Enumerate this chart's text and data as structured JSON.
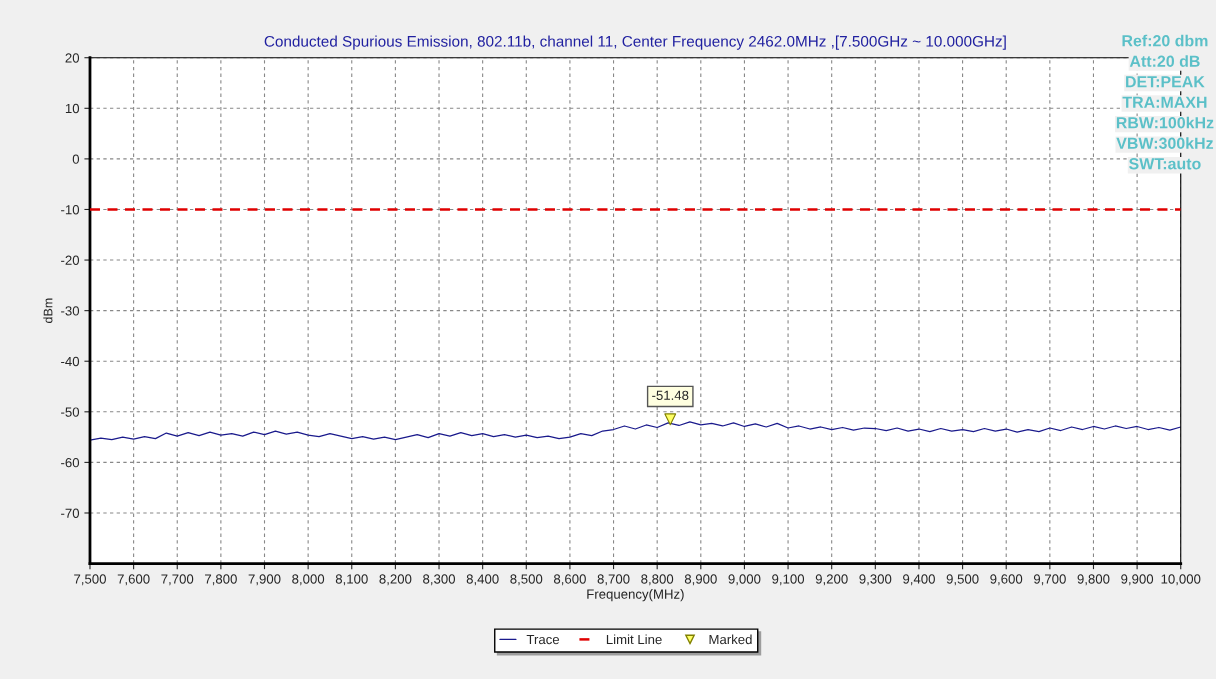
{
  "chart_data": {
    "type": "line",
    "title": "Conducted Spurious Emission, 802.11b, channel 11, Center Frequency 2462.0MHz ,[7.500GHz ~ 10.000GHz]",
    "xlabel": "Frequency(MHz)",
    "ylabel": "dBm",
    "annotations": [
      "Ref:20 dbm",
      "Att:20 dB",
      "DET:PEAK",
      "TRA:MAXH",
      "RBW:100kHz",
      "VBW:300kHz",
      "SWT:auto"
    ],
    "series": [
      {
        "name": "Trace",
        "color": "#1a1a8c",
        "x": [
          7500,
          7525,
          7550,
          7575,
          7600,
          7625,
          7650,
          7675,
          7700,
          7725,
          7750,
          7775,
          7800,
          7825,
          7850,
          7875,
          7900,
          7925,
          7950,
          7975,
          8000,
          8025,
          8050,
          8075,
          8100,
          8125,
          8150,
          8175,
          8200,
          8225,
          8250,
          8275,
          8300,
          8325,
          8350,
          8375,
          8400,
          8425,
          8450,
          8475,
          8500,
          8525,
          8550,
          8575,
          8600,
          8625,
          8650,
          8675,
          8700,
          8725,
          8750,
          8775,
          8800,
          8825,
          8850,
          8875,
          8900,
          8925,
          8950,
          8975,
          9000,
          9025,
          9050,
          9075,
          9100,
          9125,
          9150,
          9175,
          9200,
          9225,
          9250,
          9275,
          9300,
          9325,
          9350,
          9375,
          9400,
          9425,
          9450,
          9475,
          9500,
          9525,
          9550,
          9575,
          9600,
          9625,
          9650,
          9675,
          9700,
          9725,
          9750,
          9775,
          9800,
          9825,
          9850,
          9875,
          9900,
          9925,
          9950,
          9975,
          10000
        ],
        "values": [
          -55.6,
          -55.2,
          -55.5,
          -55.0,
          -55.4,
          -54.9,
          -55.3,
          -54.2,
          -54.8,
          -54.1,
          -54.7,
          -54.0,
          -54.6,
          -54.3,
          -54.8,
          -54.0,
          -54.5,
          -53.8,
          -54.4,
          -54.0,
          -54.6,
          -54.9,
          -54.3,
          -54.8,
          -55.3,
          -54.9,
          -55.4,
          -55.0,
          -55.5,
          -55.0,
          -54.5,
          -55.1,
          -54.3,
          -54.8,
          -54.1,
          -54.7,
          -54.3,
          -54.9,
          -54.5,
          -55.0,
          -54.6,
          -55.1,
          -54.8,
          -55.3,
          -55.0,
          -54.3,
          -54.7,
          -53.8,
          -53.5,
          -52.8,
          -53.4,
          -52.6,
          -53.1,
          -52.2,
          -52.7,
          -52.0,
          -52.6,
          -52.3,
          -52.8,
          -52.2,
          -52.9,
          -52.4,
          -53.0,
          -52.3,
          -53.2,
          -52.8,
          -53.4,
          -53.0,
          -53.5,
          -53.1,
          -53.6,
          -53.2,
          -53.3,
          -53.7,
          -53.2,
          -53.8,
          -53.4,
          -53.9,
          -53.3,
          -53.8,
          -53.5,
          -53.9,
          -53.3,
          -53.8,
          -53.4,
          -54.0,
          -53.5,
          -53.9,
          -53.2,
          -53.7,
          -53.0,
          -53.5,
          -52.9,
          -53.4,
          -52.8,
          -53.3,
          -52.9,
          -53.5,
          -53.1,
          -53.6,
          -53.0
        ]
      },
      {
        "name": "Marked",
        "type": "scatter",
        "marker": "triangle",
        "color": "#ffff66",
        "x": [
          8830
        ],
        "values": [
          -51.48
        ],
        "value_labels": [
          "-51.48"
        ]
      }
    ],
    "ref_lines": [
      {
        "axis": "y",
        "value": -10,
        "label": "Limit Line",
        "color": "#e00000",
        "line_style": "dashed"
      }
    ],
    "xlim": [
      7500,
      10000
    ],
    "xticks": [
      {
        "value": 7500,
        "label": "7,500"
      },
      {
        "value": 7600,
        "label": "7,600"
      },
      {
        "value": 7700,
        "label": "7,700"
      },
      {
        "value": 7800,
        "label": "7,800"
      },
      {
        "value": 7900,
        "label": "7,900"
      },
      {
        "value": 8000,
        "label": "8,000"
      },
      {
        "value": 8100,
        "label": "8,100"
      },
      {
        "value": 8200,
        "label": "8,200"
      },
      {
        "value": 8300,
        "label": "8,300"
      },
      {
        "value": 8400,
        "label": "8,400"
      },
      {
        "value": 8500,
        "label": "8,500"
      },
      {
        "value": 8600,
        "label": "8,600"
      },
      {
        "value": 8700,
        "label": "8,700"
      },
      {
        "value": 8800,
        "label": "8,800"
      },
      {
        "value": 8900,
        "label": "8,900"
      },
      {
        "value": 9000,
        "label": "9,000"
      },
      {
        "value": 9100,
        "label": "9,100"
      },
      {
        "value": 9200,
        "label": "9,200"
      },
      {
        "value": 9300,
        "label": "9,300"
      },
      {
        "value": 9400,
        "label": "9,400"
      },
      {
        "value": 9500,
        "label": "9,500"
      },
      {
        "value": 9600,
        "label": "9,600"
      },
      {
        "value": 9700,
        "label": "9,700"
      },
      {
        "value": 9800,
        "label": "9,800"
      },
      {
        "value": 9900,
        "label": "9,900"
      },
      {
        "value": 10000,
        "label": "10,000"
      }
    ],
    "ylim": [
      -80,
      20
    ],
    "yticks": [
      20,
      10,
      0,
      -10,
      -20,
      -30,
      -40,
      -50,
      -60,
      -70
    ],
    "grid": true,
    "legend": "bottom"
  }
}
